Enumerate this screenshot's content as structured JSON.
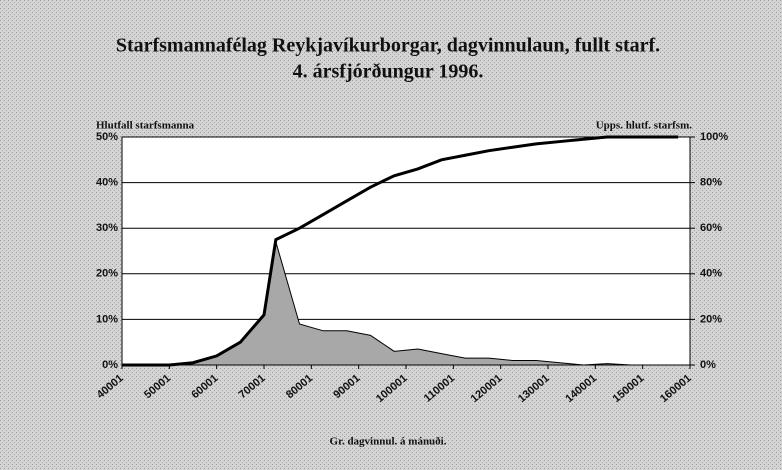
{
  "chart_data": {
    "type": "area-line",
    "title": "Starfsmannafélag Reykjavíkurborgar, dagvinnulaun, fullt starf.",
    "subtitle": "4. ársfjórðungur 1996.",
    "y_label": "Hlutfall starfsmanna",
    "y2_label": "Upps. hlutf. starfsm.",
    "x_label": "Gr. dagvinnul. á mánuði.",
    "x": [
      40001,
      45001,
      50001,
      55001,
      60001,
      65001,
      70001,
      72501,
      77501,
      82501,
      87501,
      92501,
      97501,
      102501,
      107501,
      112501,
      117501,
      122501,
      127501,
      132501,
      137501,
      142501,
      147501,
      152501,
      157501
    ],
    "series": [
      {
        "name": "Hlutfall starfsmanna",
        "color": "#a8a8a8",
        "axis": "y",
        "values": [
          0,
          0,
          0,
          0.5,
          2,
          5,
          11,
          27,
          9,
          7.5,
          7.5,
          6.5,
          3,
          3.5,
          2.5,
          1.5,
          1.5,
          1,
          1,
          0.5,
          0,
          0.3,
          0,
          0,
          0
        ]
      },
      {
        "name": "Upps. hlutf. starfsm.",
        "color": "#000000",
        "axis": "y2",
        "values": [
          0,
          0,
          0,
          1,
          4,
          10,
          22,
          55,
          60,
          66,
          72,
          78,
          83,
          86,
          90,
          92,
          94,
          95.5,
          97,
          98,
          99,
          100,
          100,
          100,
          100
        ]
      }
    ],
    "xlim": [
      40001,
      160001
    ],
    "xticks": [
      40001,
      50001,
      60001,
      70001,
      80001,
      90001,
      100001,
      110001,
      120001,
      130001,
      140001,
      150001,
      160001
    ],
    "ylim": [
      0,
      50
    ],
    "yticks": [
      {
        "value": 0,
        "label": "0%"
      },
      {
        "value": 10,
        "label": "10%"
      },
      {
        "value": 20,
        "label": "20%"
      },
      {
        "value": 30,
        "label": "30%"
      },
      {
        "value": 40,
        "label": "40%"
      },
      {
        "value": 50,
        "label": "50%"
      }
    ],
    "y2lim": [
      0,
      100
    ],
    "y2ticks": [
      {
        "value": 0,
        "label": "0%"
      },
      {
        "value": 20,
        "label": "20%"
      },
      {
        "value": 40,
        "label": "40%"
      },
      {
        "value": 60,
        "label": "60%"
      },
      {
        "value": 80,
        "label": "80%"
      },
      {
        "value": 100,
        "label": "100%"
      }
    ],
    "grid": true
  }
}
